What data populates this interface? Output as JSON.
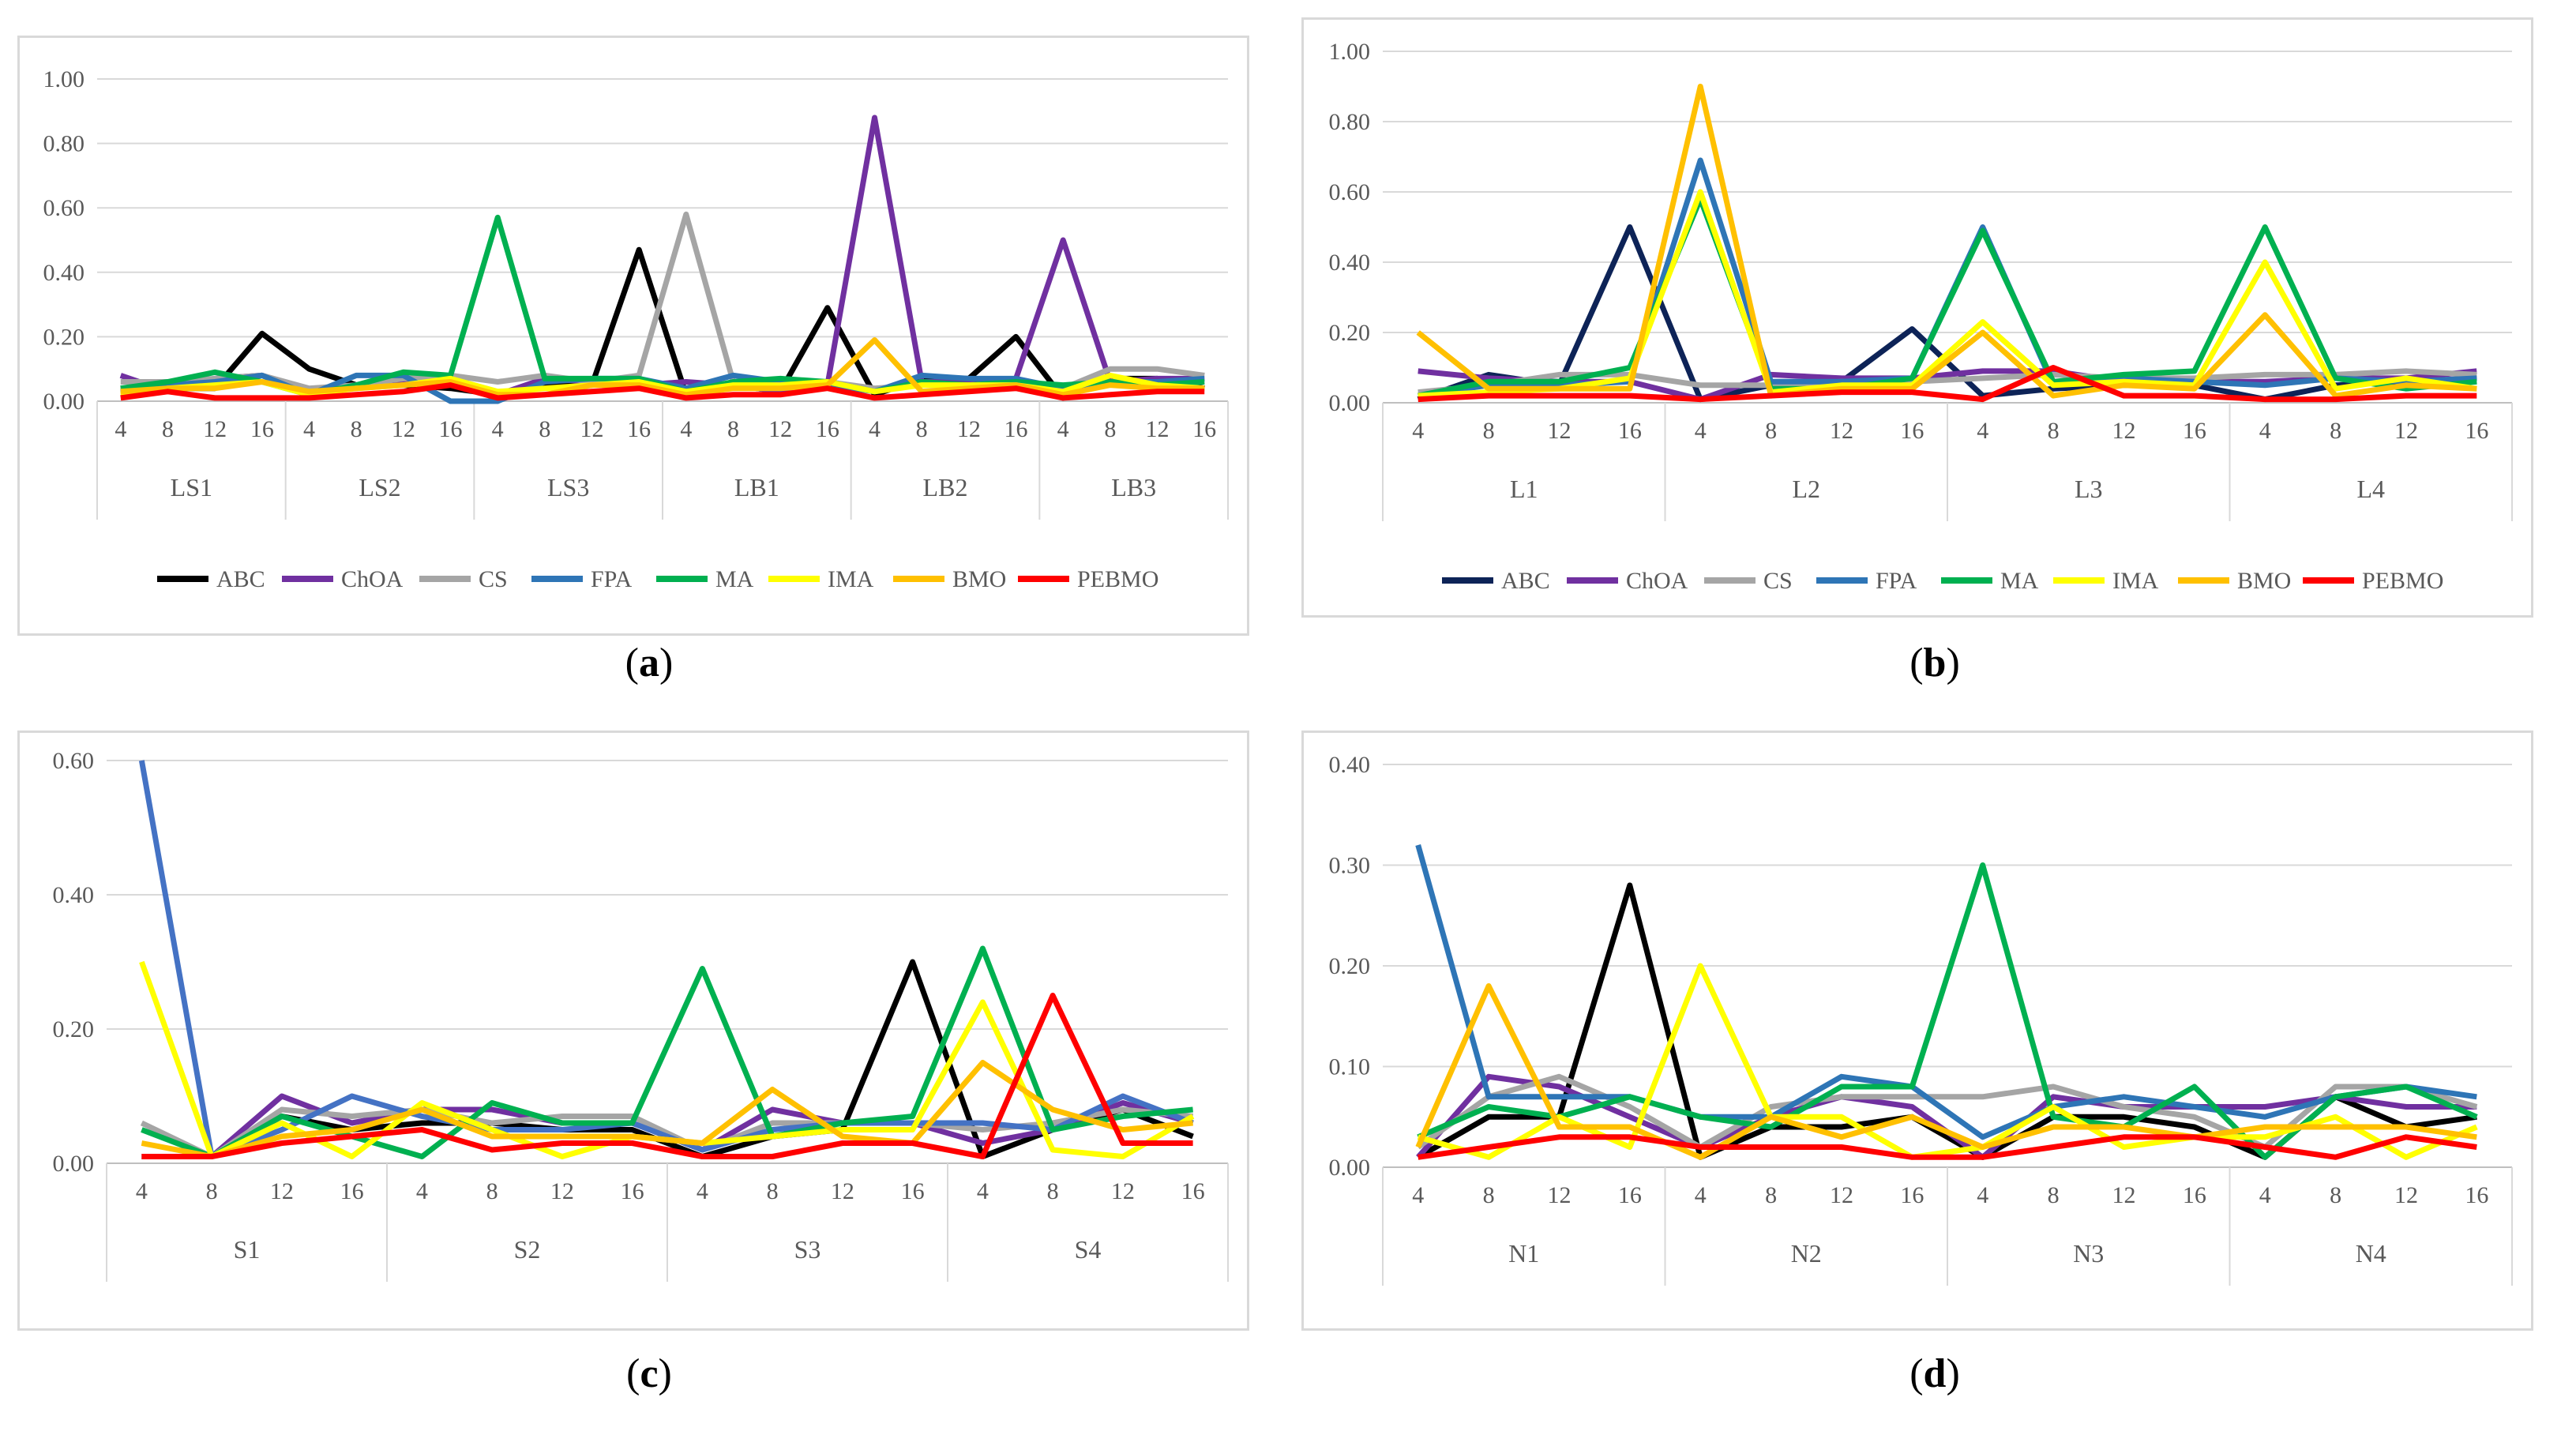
{
  "legend": {
    "series": [
      "ABC",
      "ChOA",
      "CS",
      "FPA",
      "MA",
      "IMA",
      "BMO",
      "PEBMO"
    ],
    "colors": {
      "ABC": "#000000",
      "ChOA": "#7030a0",
      "CS": "#a5a5a5",
      "FPA": "#2e75b6",
      "MA": "#00b050",
      "IMA": "#ffff00",
      "BMO": "#ffc000",
      "PEBMO": "#ff0000"
    }
  },
  "captions": {
    "a": "a",
    "b": "b",
    "c": "c",
    "d": "d"
  },
  "chart_data": [
    {
      "id": "a",
      "type": "line",
      "ylim": [
        0,
        1.0
      ],
      "yticks": [
        "0.00",
        "0.20",
        "0.40",
        "0.60",
        "0.80",
        "1.00"
      ],
      "xticks": [
        "4",
        "8",
        "12",
        "16"
      ],
      "groups": [
        "LS1",
        "LS2",
        "LS3",
        "LB1",
        "LB2",
        "LB3"
      ],
      "series": [
        {
          "name": "ABC",
          "values": [
            0.03,
            0.04,
            0.04,
            0.21,
            0.1,
            0.05,
            0.05,
            0.04,
            0.02,
            0.05,
            0.05,
            0.47,
            0.02,
            0.05,
            0.03,
            0.29,
            0.02,
            0.07,
            0.07,
            0.2,
            0.01,
            0.07,
            0.07,
            0.04
          ]
        },
        {
          "name": "ChOA",
          "values": [
            0.08,
            0.03,
            0.07,
            0.08,
            0.03,
            0.05,
            0.06,
            0.07,
            0.02,
            0.07,
            0.06,
            0.05,
            0.06,
            0.05,
            0.03,
            0.05,
            0.88,
            0.06,
            0.06,
            0.07,
            0.5,
            0.06,
            0.07,
            0.07
          ]
        },
        {
          "name": "CS",
          "values": [
            0.06,
            0.06,
            0.07,
            0.08,
            0.04,
            0.05,
            0.07,
            0.08,
            0.06,
            0.08,
            0.06,
            0.08,
            0.58,
            0.06,
            0.05,
            0.06,
            0.04,
            0.05,
            0.05,
            0.06,
            0.04,
            0.1,
            0.1,
            0.08
          ]
        },
        {
          "name": "FPA",
          "values": [
            0.04,
            0.05,
            0.06,
            0.08,
            0.02,
            0.08,
            0.08,
            0.0,
            0.0,
            0.06,
            0.07,
            0.07,
            0.04,
            0.08,
            0.06,
            0.05,
            0.03,
            0.08,
            0.07,
            0.07,
            0.04,
            0.06,
            0.06,
            0.07
          ]
        },
        {
          "name": "MA",
          "values": [
            0.04,
            0.06,
            0.09,
            0.06,
            0.02,
            0.05,
            0.09,
            0.08,
            0.57,
            0.07,
            0.07,
            0.07,
            0.03,
            0.06,
            0.07,
            0.06,
            0.03,
            0.06,
            0.05,
            0.06,
            0.05,
            0.06,
            0.05,
            0.06
          ]
        },
        {
          "name": "IMA",
          "values": [
            0.02,
            0.04,
            0.05,
            0.06,
            0.02,
            0.04,
            0.05,
            0.07,
            0.03,
            0.04,
            0.05,
            0.06,
            0.03,
            0.05,
            0.05,
            0.06,
            0.03,
            0.05,
            0.05,
            0.05,
            0.03,
            0.08,
            0.05,
            0.04
          ]
        },
        {
          "name": "BMO",
          "values": [
            0.03,
            0.04,
            0.04,
            0.06,
            0.03,
            0.04,
            0.05,
            0.06,
            0.02,
            0.02,
            0.05,
            0.05,
            0.02,
            0.04,
            0.04,
            0.05,
            0.19,
            0.03,
            0.04,
            0.05,
            0.02,
            0.05,
            0.04,
            0.04
          ]
        },
        {
          "name": "PEBMO",
          "values": [
            0.01,
            0.03,
            0.01,
            0.01,
            0.01,
            0.02,
            0.03,
            0.05,
            0.01,
            0.02,
            0.03,
            0.04,
            0.01,
            0.02,
            0.02,
            0.04,
            0.01,
            0.02,
            0.03,
            0.04,
            0.01,
            0.02,
            0.03,
            0.03
          ]
        }
      ]
    },
    {
      "id": "b",
      "type": "line",
      "ylim": [
        0,
        1.0
      ],
      "yticks": [
        "0.00",
        "0.20",
        "0.40",
        "0.60",
        "0.80",
        "1.00"
      ],
      "xticks": [
        "4",
        "8",
        "12",
        "16"
      ],
      "groups": [
        "L1",
        "L2",
        "L3",
        "L4"
      ],
      "colors": {
        "ABC": "#0d2357"
      },
      "series": [
        {
          "name": "ABC",
          "values": [
            0.01,
            0.08,
            0.05,
            0.5,
            0.01,
            0.05,
            0.06,
            0.21,
            0.02,
            0.04,
            0.05,
            0.05,
            0.01,
            0.05,
            0.06,
            0.07
          ]
        },
        {
          "name": "ChOA",
          "values": [
            0.09,
            0.07,
            0.06,
            0.06,
            0.01,
            0.08,
            0.07,
            0.07,
            0.09,
            0.09,
            0.06,
            0.06,
            0.06,
            0.07,
            0.07,
            0.09
          ]
        },
        {
          "name": "CS",
          "values": [
            0.03,
            0.05,
            0.08,
            0.08,
            0.05,
            0.05,
            0.06,
            0.06,
            0.07,
            0.08,
            0.07,
            0.07,
            0.08,
            0.08,
            0.09,
            0.08
          ]
        },
        {
          "name": "FPA",
          "values": [
            0.02,
            0.05,
            0.05,
            0.06,
            0.69,
            0.06,
            0.06,
            0.07,
            0.5,
            0.05,
            0.07,
            0.06,
            0.05,
            0.07,
            0.06,
            0.07
          ]
        },
        {
          "name": "MA",
          "values": [
            0.02,
            0.06,
            0.06,
            0.1,
            0.58,
            0.04,
            0.04,
            0.07,
            0.49,
            0.06,
            0.08,
            0.09,
            0.5,
            0.07,
            0.04,
            0.06
          ]
        },
        {
          "name": "IMA",
          "values": [
            0.02,
            0.03,
            0.04,
            0.07,
            0.6,
            0.03,
            0.05,
            0.05,
            0.23,
            0.05,
            0.06,
            0.05,
            0.4,
            0.04,
            0.07,
            0.04
          ]
        },
        {
          "name": "BMO",
          "values": [
            0.2,
            0.04,
            0.04,
            0.04,
            0.9,
            0.02,
            0.04,
            0.04,
            0.2,
            0.02,
            0.05,
            0.04,
            0.25,
            0.02,
            0.05,
            0.04
          ]
        },
        {
          "name": "PEBMO",
          "values": [
            0.01,
            0.02,
            0.02,
            0.02,
            0.01,
            0.02,
            0.03,
            0.03,
            0.01,
            0.1,
            0.02,
            0.02,
            0.01,
            0.01,
            0.02,
            0.02
          ]
        }
      ]
    },
    {
      "id": "c",
      "type": "line",
      "ylim": [
        0,
        0.6
      ],
      "yticks": [
        "0.00",
        "0.20",
        "0.40",
        "0.60"
      ],
      "xticks": [
        "4",
        "8",
        "12",
        "16"
      ],
      "groups": [
        "S1",
        "S2",
        "S3",
        "S4"
      ],
      "colors": {
        "FPA": "#4472c4"
      },
      "series": [
        {
          "name": "ABC",
          "values": [
            0.01,
            0.01,
            0.07,
            0.05,
            0.06,
            0.06,
            0.05,
            0.05,
            0.01,
            0.04,
            0.05,
            0.3,
            0.01,
            0.05,
            0.08,
            0.04
          ]
        },
        {
          "name": "ChOA",
          "values": [
            0.01,
            0.01,
            0.1,
            0.06,
            0.08,
            0.08,
            0.06,
            0.06,
            0.02,
            0.08,
            0.06,
            0.06,
            0.03,
            0.05,
            0.09,
            0.06
          ]
        },
        {
          "name": "CS",
          "values": [
            0.06,
            0.01,
            0.08,
            0.07,
            0.08,
            0.06,
            0.07,
            0.07,
            0.02,
            0.06,
            0.06,
            0.06,
            0.05,
            0.06,
            0.08,
            0.07
          ]
        },
        {
          "name": "FPA",
          "values": [
            0.6,
            0.01,
            0.05,
            0.1,
            0.07,
            0.05,
            0.05,
            0.06,
            0.02,
            0.05,
            0.06,
            0.06,
            0.06,
            0.05,
            0.1,
            0.06
          ]
        },
        {
          "name": "MA",
          "values": [
            0.05,
            0.01,
            0.07,
            0.04,
            0.01,
            0.09,
            0.06,
            0.06,
            0.29,
            0.04,
            0.06,
            0.07,
            0.32,
            0.05,
            0.07,
            0.08
          ]
        },
        {
          "name": "IMA",
          "values": [
            0.3,
            0.01,
            0.06,
            0.01,
            0.09,
            0.05,
            0.01,
            0.04,
            0.03,
            0.04,
            0.05,
            0.05,
            0.24,
            0.02,
            0.01,
            0.07
          ]
        },
        {
          "name": "BMO",
          "values": [
            0.03,
            0.01,
            0.04,
            0.05,
            0.08,
            0.04,
            0.04,
            0.04,
            0.03,
            0.11,
            0.04,
            0.03,
            0.15,
            0.08,
            0.05,
            0.06
          ]
        },
        {
          "name": "PEBMO",
          "values": [
            0.01,
            0.01,
            0.03,
            0.04,
            0.05,
            0.02,
            0.03,
            0.03,
            0.01,
            0.01,
            0.03,
            0.03,
            0.01,
            0.25,
            0.03,
            0.03
          ]
        }
      ]
    },
    {
      "id": "d",
      "type": "line",
      "ylim": [
        0,
        0.4
      ],
      "yticks": [
        "0.00",
        "0.10",
        "0.20",
        "0.30",
        "0.40"
      ],
      "xticks": [
        "4",
        "8",
        "12",
        "16"
      ],
      "groups": [
        "N1",
        "N2",
        "N3",
        "N4"
      ],
      "series": [
        {
          "name": "ABC",
          "values": [
            0.01,
            0.05,
            0.05,
            0.28,
            0.01,
            0.04,
            0.04,
            0.05,
            0.01,
            0.05,
            0.05,
            0.04,
            0.01,
            0.07,
            0.04,
            0.05
          ]
        },
        {
          "name": "ChOA",
          "values": [
            0.01,
            0.09,
            0.08,
            0.05,
            0.02,
            0.05,
            0.07,
            0.06,
            0.01,
            0.07,
            0.06,
            0.06,
            0.06,
            0.07,
            0.06,
            0.06
          ]
        },
        {
          "name": "CS",
          "values": [
            0.02,
            0.07,
            0.09,
            0.06,
            0.02,
            0.06,
            0.07,
            0.07,
            0.07,
            0.08,
            0.06,
            0.05,
            0.02,
            0.08,
            0.08,
            0.06
          ]
        },
        {
          "name": "FPA",
          "values": [
            0.32,
            0.07,
            0.07,
            0.07,
            0.05,
            0.05,
            0.09,
            0.08,
            0.03,
            0.06,
            0.07,
            0.06,
            0.05,
            0.07,
            0.08,
            0.07
          ]
        },
        {
          "name": "MA",
          "values": [
            0.03,
            0.06,
            0.05,
            0.07,
            0.05,
            0.04,
            0.08,
            0.08,
            0.3,
            0.05,
            0.04,
            0.08,
            0.01,
            0.07,
            0.08,
            0.05
          ]
        },
        {
          "name": "IMA",
          "values": [
            0.03,
            0.01,
            0.05,
            0.02,
            0.2,
            0.05,
            0.05,
            0.01,
            0.02,
            0.06,
            0.02,
            0.03,
            0.03,
            0.05,
            0.01,
            0.04
          ]
        },
        {
          "name": "BMO",
          "values": [
            0.02,
            0.18,
            0.04,
            0.04,
            0.01,
            0.05,
            0.03,
            0.05,
            0.02,
            0.04,
            0.04,
            0.03,
            0.04,
            0.04,
            0.04,
            0.03
          ]
        },
        {
          "name": "PEBMO",
          "values": [
            0.01,
            0.02,
            0.03,
            0.03,
            0.02,
            0.02,
            0.02,
            0.01,
            0.01,
            0.02,
            0.03,
            0.03,
            0.02,
            0.01,
            0.03,
            0.02
          ]
        }
      ]
    }
  ]
}
